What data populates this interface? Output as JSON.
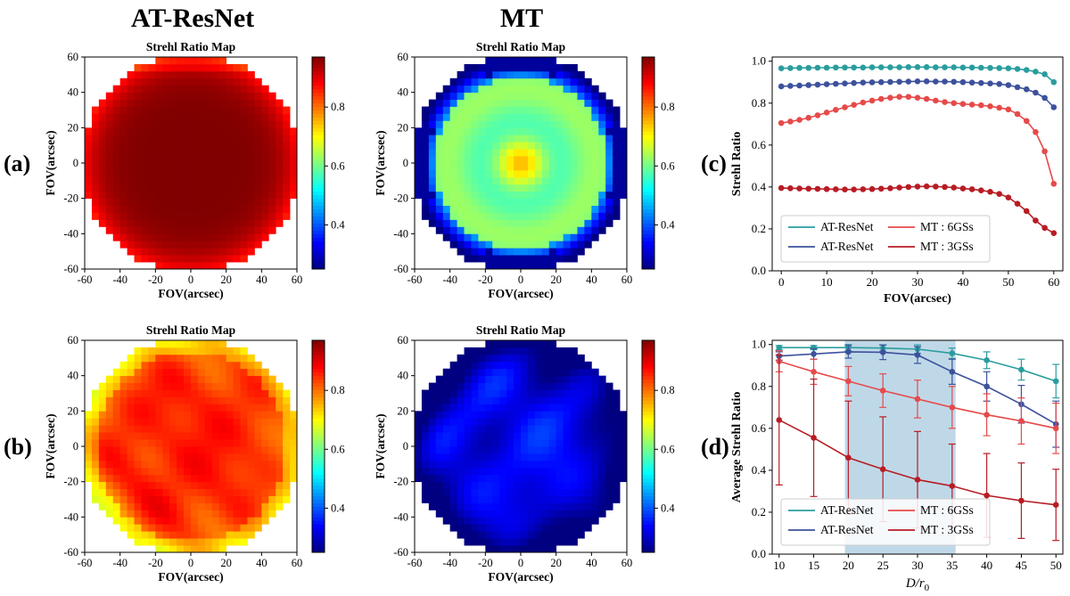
{
  "figure": {
    "column_titles": [
      "AT-ResNet",
      "MT"
    ],
    "row_labels": [
      "(a)",
      "(b)"
    ]
  },
  "maps": [
    {
      "id": "a-atresnet",
      "title": "Strehl Ratio Map",
      "xlabel": "FOV(arcsec)",
      "ylabel": "FOV(arcsec)",
      "ticks": [
        -60,
        -40,
        -20,
        0,
        20,
        40,
        60
      ],
      "colorbar_ticks": [
        0.4,
        0.6,
        0.8
      ],
      "colormap": "jet",
      "clim": [
        0.25,
        0.97
      ],
      "pattern": "dark-uniform",
      "center_value": 0.97,
      "edge_value": 0.88
    },
    {
      "id": "a-mt",
      "title": "Strehl Ratio Map",
      "xlabel": "FOV(arcsec)",
      "ylabel": "FOV(arcsec)",
      "ticks": [
        -60,
        -40,
        -20,
        0,
        20,
        40,
        60
      ],
      "colorbar_ticks": [
        0.4,
        0.6,
        0.8
      ],
      "colormap": "jet",
      "clim": [
        0.25,
        0.97
      ],
      "pattern": "rings",
      "center_value": 0.72,
      "edge_value": 0.25
    },
    {
      "id": "b-atresnet",
      "title": "Strehl Ratio Map",
      "xlabel": "FOV(arcsec)",
      "ylabel": "FOV(arcsec)",
      "ticks": [
        -60,
        -40,
        -20,
        0,
        20,
        40,
        60
      ],
      "colorbar_ticks": [
        0.4,
        0.6,
        0.8
      ],
      "colormap": "jet",
      "clim": [
        0.25,
        0.97
      ],
      "pattern": "turbulent-high",
      "center_value": 0.87,
      "edge_value": 0.78
    },
    {
      "id": "b-mt",
      "title": "Strehl Ratio Map",
      "xlabel": "FOV(arcsec)",
      "ylabel": "FOV(arcsec)",
      "ticks": [
        -60,
        -40,
        -20,
        0,
        20,
        40,
        60
      ],
      "colorbar_ticks": [
        0.4,
        0.6,
        0.8
      ],
      "colormap": "jet",
      "clim": [
        0.25,
        0.97
      ],
      "pattern": "turbulent-low",
      "center_value": 0.37,
      "edge_value": 0.25
    }
  ],
  "chart_data": [
    {
      "panel": "(c)",
      "type": "line",
      "xlabel": "FOV(arcsec)",
      "ylabel": "Strehl Ratio",
      "xlim": [
        -2,
        62
      ],
      "ylim": [
        0,
        1.02
      ],
      "xticks": [
        0,
        10,
        20,
        30,
        40,
        50,
        60
      ],
      "yticks": [
        0.0,
        0.2,
        0.4,
        0.6,
        0.8,
        1.0
      ],
      "x": [
        0,
        2,
        4,
        6,
        8,
        10,
        12,
        14,
        16,
        18,
        20,
        22,
        24,
        26,
        28,
        30,
        32,
        34,
        36,
        38,
        40,
        42,
        44,
        46,
        48,
        50,
        52,
        54,
        56,
        58,
        60
      ],
      "series": [
        {
          "name": "AT-ResNet",
          "color": "#2a9d9e",
          "values": [
            0.966,
            0.967,
            0.968,
            0.968,
            0.969,
            0.969,
            0.97,
            0.97,
            0.97,
            0.97,
            0.971,
            0.971,
            0.971,
            0.971,
            0.972,
            0.972,
            0.972,
            0.971,
            0.971,
            0.971,
            0.97,
            0.97,
            0.969,
            0.968,
            0.967,
            0.966,
            0.963,
            0.958,
            0.95,
            0.938,
            0.9
          ]
        },
        {
          "name": "AT-ResNet",
          "color": "#3d519c",
          "values": [
            0.88,
            0.882,
            0.884,
            0.886,
            0.888,
            0.89,
            0.892,
            0.894,
            0.896,
            0.898,
            0.899,
            0.9,
            0.901,
            0.902,
            0.903,
            0.904,
            0.904,
            0.903,
            0.903,
            0.902,
            0.9,
            0.898,
            0.896,
            0.894,
            0.891,
            0.886,
            0.876,
            0.866,
            0.85,
            0.825,
            0.78
          ]
        },
        {
          "name": "MT : 6GSs",
          "color": "#e64a4a",
          "values": [
            0.705,
            0.712,
            0.72,
            0.73,
            0.742,
            0.755,
            0.768,
            0.78,
            0.792,
            0.803,
            0.812,
            0.82,
            0.826,
            0.83,
            0.83,
            0.826,
            0.82,
            0.812,
            0.805,
            0.8,
            0.796,
            0.793,
            0.79,
            0.785,
            0.778,
            0.77,
            0.748,
            0.715,
            0.662,
            0.57,
            0.415
          ]
        },
        {
          "name": "MT : 3GSs",
          "color": "#b81c24",
          "values": [
            0.395,
            0.394,
            0.393,
            0.392,
            0.391,
            0.39,
            0.389,
            0.388,
            0.388,
            0.389,
            0.39,
            0.392,
            0.394,
            0.397,
            0.4,
            0.402,
            0.403,
            0.402,
            0.4,
            0.397,
            0.393,
            0.389,
            0.384,
            0.377,
            0.367,
            0.35,
            0.32,
            0.285,
            0.24,
            0.205,
            0.18
          ]
        }
      ],
      "legend_position": "lower-left"
    },
    {
      "panel": "(d)",
      "type": "line",
      "xlabel": "D/r0",
      "ylabel": "Average Strehl Ratio",
      "xlim": [
        9,
        51
      ],
      "ylim": [
        0,
        1.02
      ],
      "xticks": [
        10,
        15,
        20,
        25,
        30,
        35,
        40,
        45,
        50
      ],
      "yticks": [
        0.0,
        0.2,
        0.4,
        0.6,
        0.8,
        1.0
      ],
      "shaded_x_range": [
        19.5,
        35.5
      ],
      "x": [
        10,
        15,
        20,
        25,
        30,
        35,
        40,
        45,
        50
      ],
      "series": [
        {
          "name": "AT-ResNet",
          "color": "#2a9d9e",
          "values": [
            0.985,
            0.985,
            0.985,
            0.983,
            0.978,
            0.958,
            0.925,
            0.88,
            0.825
          ],
          "errors": [
            0.01,
            0.01,
            0.015,
            0.015,
            0.02,
            0.025,
            0.04,
            0.05,
            0.08
          ]
        },
        {
          "name": "AT-ResNet",
          "color": "#3d519c",
          "values": [
            0.945,
            0.955,
            0.965,
            0.963,
            0.95,
            0.87,
            0.8,
            0.715,
            0.62
          ],
          "errors": [
            0.02,
            0.025,
            0.03,
            0.035,
            0.04,
            0.06,
            0.07,
            0.09,
            0.11
          ]
        },
        {
          "name": "MT : 6GSs",
          "color": "#e64a4a",
          "values": [
            0.92,
            0.87,
            0.825,
            0.78,
            0.74,
            0.7,
            0.665,
            0.635,
            0.6
          ],
          "errors": [
            0.05,
            0.06,
            0.07,
            0.08,
            0.09,
            0.1,
            0.1,
            0.11,
            0.12
          ]
        },
        {
          "name": "MT : 3GSs",
          "color": "#b81c24",
          "values": [
            0.64,
            0.555,
            0.46,
            0.405,
            0.355,
            0.325,
            0.28,
            0.255,
            0.235
          ],
          "errors": [
            0.31,
            0.28,
            0.27,
            0.25,
            0.23,
            0.2,
            0.2,
            0.18,
            0.17
          ]
        }
      ],
      "legend_position": "lower-left"
    }
  ]
}
